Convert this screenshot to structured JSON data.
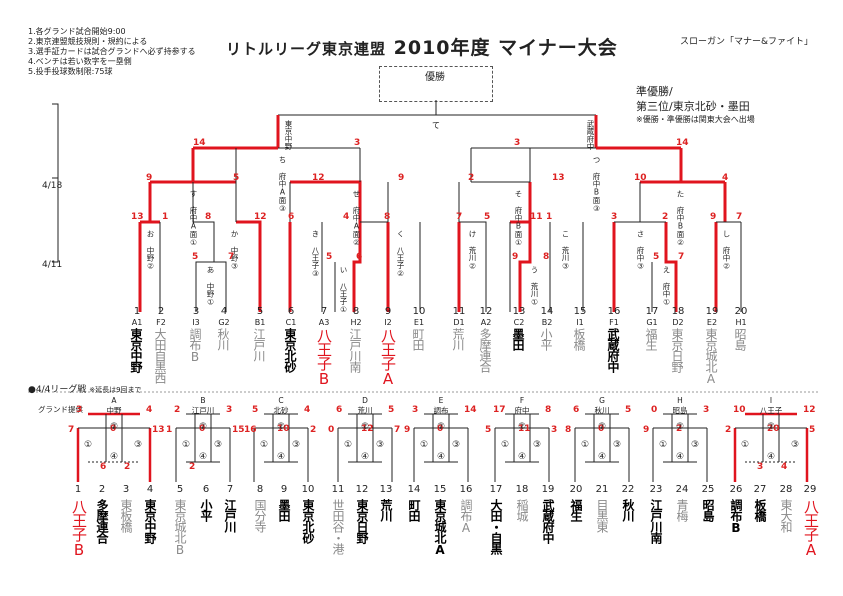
{
  "notes": [
    "1.各グランド試合開始9:00",
    "2.東京連盟競技規則・規約による",
    "3.選手証カードは試合グランドへ必ず持参する",
    "4.ベンチは若い数字を一塁側",
    "5.投手投球数制限:75球"
  ],
  "title": "リトルリーグ東京連盟 2010年度 マイナー大会",
  "title_a": "リトルリーグ東京連盟",
  "title_b": "2010年度 マイナー大会",
  "slogan": "スローガン「マナー&ファイト」",
  "winner_label": "優勝",
  "runner_up": [
    "準優勝/",
    "第三位/東京北砂・墨田"
  ],
  "kanto_note": "※優勝・準優勝は関東大会へ出場",
  "final_label": "て",
  "final_left": "東京中野",
  "final_right": "武蔵府中",
  "dates": [
    "4/18",
    "4/11"
  ],
  "league_title": "●4/4リーグ戦",
  "league_note": "※延長は9回まで",
  "ground_label": "グランド提供",
  "bracket_rounds": {
    "l1": "ち 府中A面③",
    "l2": "す 府中A面①",
    "l3": "か 中野③",
    "l4": "お 中野②",
    "l5": "あ 中野①",
    "l6": "せ 府中A面②",
    "l7": "き 八王子③",
    "l8": "い 八王子①",
    "l9": "く 八王子②",
    "r1": "つ 府中B面③",
    "r2": "そ 府中B面①",
    "r3": "け 荒川②",
    "r4": "こ 荒川③",
    "r5": "う 荒川①",
    "r6": "た 府中B面②",
    "r7": "さ 府中③",
    "r8": "え 府中①",
    "r9": "し 府中②"
  },
  "scores": {
    "top_left": "14",
    "top_left2": "3",
    "top_right": "3",
    "top_right2": "14",
    "s1": "9",
    "s2": "5",
    "s3": "12",
    "s4": "9",
    "s5": "2",
    "s6": "13",
    "s7": "10",
    "s8": "4",
    "t1": "13",
    "t2": "1",
    "t3": "8",
    "t4": "12",
    "t5": "6",
    "t6": "4",
    "t7": "8",
    "t8": "7",
    "t9": "5",
    "t10": "11",
    "t11": "1",
    "t12": "3",
    "t13": "2",
    "t14": "9",
    "t15": "7",
    "u1": "5",
    "u2": "7",
    "u3": "5",
    "u4": "6",
    "u5": "9",
    "u6": "8",
    "u7": "5",
    "u8": "7"
  },
  "teams": [
    {
      "num": "1",
      "seed": "A1",
      "name": "東京中野",
      "style": "bold"
    },
    {
      "num": "2",
      "seed": "F2",
      "name": "大田自黒西",
      "style": "grey"
    },
    {
      "num": "3",
      "seed": "I3",
      "name": "調布B",
      "style": "grey"
    },
    {
      "num": "4",
      "seed": "G2",
      "name": "秋川",
      "style": "grey"
    },
    {
      "num": "5",
      "seed": "B1",
      "name": "江戸川",
      "style": "grey"
    },
    {
      "num": "6",
      "seed": "C1",
      "name": "東京北砂",
      "style": "bold"
    },
    {
      "num": "7",
      "seed": "A3",
      "name": "八王子B",
      "style": "red"
    },
    {
      "num": "8",
      "seed": "H2",
      "name": "江戸川南",
      "style": "grey"
    },
    {
      "num": "9",
      "seed": "I2",
      "name": "八王子A",
      "style": "red"
    },
    {
      "num": "10",
      "seed": "E1",
      "name": "町田",
      "style": "grey"
    },
    {
      "num": "11",
      "seed": "D1",
      "name": "荒川",
      "style": "grey"
    },
    {
      "num": "12",
      "seed": "A2",
      "name": "多摩連合",
      "style": "grey"
    },
    {
      "num": "13",
      "seed": "C2",
      "name": "墨田",
      "style": "bold"
    },
    {
      "num": "14",
      "seed": "B2",
      "name": "小平",
      "style": "grey"
    },
    {
      "num": "15",
      "seed": "I1",
      "name": "板橋",
      "style": "grey"
    },
    {
      "num": "16",
      "seed": "F1",
      "name": "武蔵府中",
      "style": "bold"
    },
    {
      "num": "17",
      "seed": "G1",
      "name": "福生",
      "style": "grey"
    },
    {
      "num": "18",
      "seed": "D2",
      "name": "東京日野",
      "style": "grey"
    },
    {
      "num": "19",
      "seed": "E2",
      "name": "東京城北A",
      "style": "grey"
    },
    {
      "num": "20",
      "seed": "H1",
      "name": "昭島",
      "style": "grey"
    }
  ],
  "leagues": [
    {
      "letter": "A",
      "ground": "中野",
      "scores": [
        "3",
        "4",
        "7",
        "0",
        "13",
        "6",
        "2"
      ]
    },
    {
      "letter": "B",
      "ground": "江戸川",
      "scores": [
        "2",
        "3",
        "1",
        "0",
        "15",
        "2"
      ]
    },
    {
      "letter": "C",
      "ground": "北砂",
      "scores": [
        "5",
        "4",
        "16",
        "10",
        "2"
      ]
    },
    {
      "letter": "D",
      "ground": "荒川",
      "scores": [
        "6",
        "5",
        "0",
        "12",
        "7"
      ]
    },
    {
      "letter": "E",
      "ground": "調布",
      "scores": [
        "3",
        "14",
        "9",
        "0"
      ]
    },
    {
      "letter": "F",
      "ground": "府中",
      "scores": [
        "17",
        "8",
        "5",
        "11",
        "3"
      ]
    },
    {
      "letter": "G",
      "ground": "秋川",
      "scores": [
        "6",
        "5",
        "8",
        "0"
      ]
    },
    {
      "letter": "H",
      "ground": "昭島",
      "scores": [
        "0",
        "3",
        "9",
        "2"
      ]
    },
    {
      "letter": "I",
      "ground": "八王子",
      "scores": [
        "10",
        "12",
        "2",
        "20",
        "5",
        "3",
        "4"
      ]
    }
  ],
  "league_teams": [
    {
      "num": "1",
      "name": "八王子B",
      "style": "red"
    },
    {
      "num": "2",
      "name": "多摩連合",
      "style": "bold"
    },
    {
      "num": "3",
      "name": "東板橋",
      "style": "grey"
    },
    {
      "num": "4",
      "name": "東京中野",
      "style": "bold"
    },
    {
      "num": "5",
      "name": "東京城北B",
      "style": "grey"
    },
    {
      "num": "6",
      "name": "小平",
      "style": "bold"
    },
    {
      "num": "7",
      "name": "江戸川",
      "style": "bold"
    },
    {
      "num": "8",
      "name": "国分寺",
      "style": "grey"
    },
    {
      "num": "9",
      "name": "墨田",
      "style": "bold"
    },
    {
      "num": "10",
      "name": "東京北砂",
      "style": "bold"
    },
    {
      "num": "11",
      "name": "世田谷・港",
      "style": "grey"
    },
    {
      "num": "12",
      "name": "東京日野",
      "style": "bold"
    },
    {
      "num": "13",
      "name": "荒川",
      "style": "bold"
    },
    {
      "num": "14",
      "name": "町田",
      "style": "bold"
    },
    {
      "num": "15",
      "name": "東京城北A",
      "style": "bold"
    },
    {
      "num": "16",
      "name": "調布A",
      "style": "grey"
    },
    {
      "num": "17",
      "name": "大田・自黒",
      "style": "bold"
    },
    {
      "num": "18",
      "name": "稲城",
      "style": "grey"
    },
    {
      "num": "19",
      "name": "武蔵府中",
      "style": "bold"
    },
    {
      "num": "20",
      "name": "福生",
      "style": "bold"
    },
    {
      "num": "21",
      "name": "目黒東",
      "style": "grey"
    },
    {
      "num": "22",
      "name": "秋川",
      "style": "bold"
    },
    {
      "num": "23",
      "name": "江戸川南",
      "style": "bold"
    },
    {
      "num": "24",
      "name": "青梅",
      "style": "grey"
    },
    {
      "num": "25",
      "name": "昭島",
      "style": "bold"
    },
    {
      "num": "26",
      "name": "調布B",
      "style": "bold"
    },
    {
      "num": "27",
      "name": "板橋",
      "style": "bold"
    },
    {
      "num": "28",
      "name": "東大和",
      "style": "grey"
    },
    {
      "num": "29",
      "name": "八王子A",
      "style": "red"
    }
  ],
  "colors": {
    "red": "#e0141e",
    "grey": "#888888"
  }
}
